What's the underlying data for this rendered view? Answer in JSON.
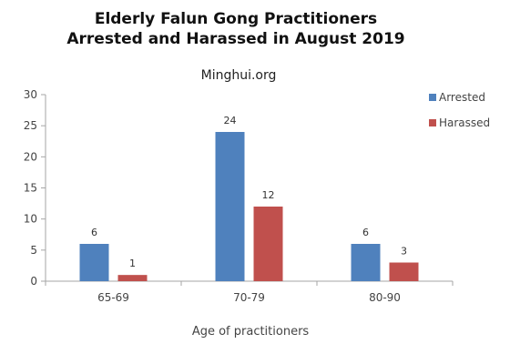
{
  "chart_data": {
    "type": "bar",
    "title_lines": [
      "Elderly Falun Gong Practitioners",
      "Arrested and Harassed in August 2019"
    ],
    "subtitle": "Minghui.org",
    "xlabel": "Age of practitioners",
    "ylabel": "",
    "categories": [
      "65-69",
      "70-79",
      "80-90"
    ],
    "ylim": [
      0,
      30
    ],
    "yticks": [
      0,
      5,
      10,
      15,
      20,
      25,
      30
    ],
    "grid": false,
    "legend_position": "top-right",
    "series": [
      {
        "name": "Arrested",
        "values": [
          6,
          24,
          6
        ],
        "color": "#4f81bd"
      },
      {
        "name": "Harassed",
        "values": [
          1,
          12,
          3
        ],
        "color": "#c0504d"
      }
    ]
  }
}
